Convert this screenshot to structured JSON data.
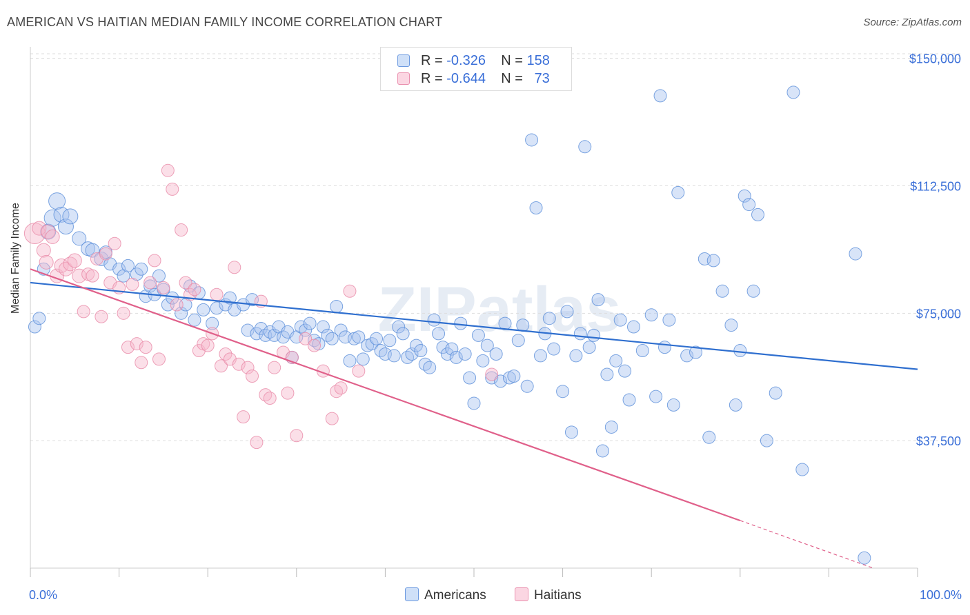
{
  "title": "AMERICAN VS HAITIAN MEDIAN FAMILY INCOME CORRELATION CHART",
  "source": "Source: ZipAtlas.com",
  "watermark": "ZIPatlas",
  "legend": {
    "rows": [
      {
        "r_label": "R =",
        "r_value": "-0.326",
        "n_label": "N =",
        "n_value": "158",
        "color": "#a9c4f0"
      },
      {
        "r_label": "R =",
        "r_value": "-0.644",
        "n_label": "N =",
        "n_value": "73",
        "color": "#f6b9cd"
      }
    ]
  },
  "bottom_legend": [
    {
      "label": "Americans",
      "color": "#a9c4f0"
    },
    {
      "label": "Haitians",
      "color": "#f6b9cd"
    }
  ],
  "chart_data": {
    "type": "scatter",
    "title": "AMERICAN VS HAITIAN MEDIAN FAMILY INCOME CORRELATION CHART",
    "xlabel": "",
    "ylabel": "Median Family Income",
    "xlim": [
      0,
      100
    ],
    "ylim": [
      0,
      155000
    ],
    "x_tick_labels": [
      "0.0%",
      "100.0%"
    ],
    "y_ticks": [
      37500,
      75000,
      112500,
      150000
    ],
    "y_tick_labels": [
      "$37,500",
      "$75,000",
      "$112,500",
      "$150,000"
    ],
    "grid": true,
    "series": [
      {
        "name": "Americans",
        "color": "#5b8fd9",
        "fill": "#a9c4f0",
        "trend": {
          "x": [
            0,
            100
          ],
          "y": [
            84000,
            58500
          ],
          "color": "#2f6fcf"
        },
        "points": [
          [
            0.5,
            71000,
            9
          ],
          [
            1,
            73500,
            9
          ],
          [
            1.5,
            88000,
            9
          ],
          [
            2,
            99000,
            11
          ],
          [
            2.5,
            103000,
            12
          ],
          [
            3,
            108000,
            12
          ],
          [
            3.5,
            104000,
            11
          ],
          [
            4,
            100500,
            11
          ],
          [
            4.5,
            103500,
            11
          ],
          [
            5.5,
            97000,
            10
          ],
          [
            6.5,
            94000,
            10
          ],
          [
            7,
            93500,
            10
          ],
          [
            8,
            91000,
            10
          ],
          [
            8.5,
            93000,
            9
          ],
          [
            9,
            89500,
            9
          ],
          [
            10,
            88000,
            9
          ],
          [
            10.5,
            86000,
            9
          ],
          [
            11,
            89000,
            9
          ],
          [
            12,
            86500,
            9
          ],
          [
            12.5,
            88000,
            9
          ],
          [
            13,
            80000,
            9
          ],
          [
            13.5,
            83000,
            9
          ],
          [
            14,
            80500,
            9
          ],
          [
            14.5,
            86000,
            9
          ],
          [
            15,
            82000,
            9
          ],
          [
            15.5,
            77500,
            9
          ],
          [
            16,
            79500,
            9
          ],
          [
            17,
            75000,
            9
          ],
          [
            17.5,
            77500,
            9
          ],
          [
            18,
            83000,
            9
          ],
          [
            18.5,
            73000,
            9
          ],
          [
            19,
            81000,
            9
          ],
          [
            19.5,
            76000,
            9
          ],
          [
            20.5,
            72000,
            9
          ],
          [
            21,
            76500,
            9
          ],
          [
            22,
            77500,
            9
          ],
          [
            22.5,
            79500,
            9
          ],
          [
            23,
            76000,
            9
          ],
          [
            24,
            77500,
            9
          ],
          [
            24.5,
            70000,
            9
          ],
          [
            25,
            79000,
            9
          ],
          [
            25.5,
            69000,
            9
          ],
          [
            26,
            70500,
            9
          ],
          [
            26.5,
            68500,
            9
          ],
          [
            27,
            69500,
            9
          ],
          [
            27.5,
            68500,
            9
          ],
          [
            28,
            71000,
            9
          ],
          [
            28.5,
            68000,
            9
          ],
          [
            29,
            69500,
            9
          ],
          [
            29.5,
            62000,
            9
          ],
          [
            30,
            68000,
            9
          ],
          [
            30.5,
            71000,
            9
          ],
          [
            31,
            70000,
            9
          ],
          [
            31.5,
            72000,
            9
          ],
          [
            32,
            67000,
            9
          ],
          [
            32.5,
            66000,
            9
          ],
          [
            33,
            71000,
            9
          ],
          [
            33.5,
            68500,
            9
          ],
          [
            34,
            67500,
            9
          ],
          [
            34.5,
            77000,
            9
          ],
          [
            35,
            70000,
            9
          ],
          [
            35.5,
            68000,
            9
          ],
          [
            36,
            61000,
            9
          ],
          [
            36.5,
            67500,
            9
          ],
          [
            37,
            68000,
            9
          ],
          [
            37.5,
            61500,
            9
          ],
          [
            38,
            65500,
            9
          ],
          [
            38.5,
            66000,
            9
          ],
          [
            39,
            67500,
            9
          ],
          [
            39.5,
            64000,
            9
          ],
          [
            40,
            63000,
            9
          ],
          [
            40.5,
            67000,
            9
          ],
          [
            41,
            62500,
            9
          ],
          [
            41.5,
            71000,
            9
          ],
          [
            42,
            69000,
            9
          ],
          [
            42.5,
            62000,
            9
          ],
          [
            43,
            63000,
            9
          ],
          [
            43.5,
            65500,
            9
          ],
          [
            44,
            64000,
            9
          ],
          [
            44.5,
            60000,
            9
          ],
          [
            45,
            59000,
            9
          ],
          [
            45.5,
            73000,
            9
          ],
          [
            46,
            69000,
            9
          ],
          [
            46.5,
            65000,
            9
          ],
          [
            47,
            63000,
            9
          ],
          [
            47.5,
            64500,
            9
          ],
          [
            48,
            62000,
            9
          ],
          [
            48.5,
            72000,
            9
          ],
          [
            49,
            63000,
            9
          ],
          [
            49.5,
            56000,
            9
          ],
          [
            50,
            48500,
            9
          ],
          [
            50.5,
            68500,
            9
          ],
          [
            51,
            61000,
            9
          ],
          [
            51.5,
            65500,
            9
          ],
          [
            52,
            56000,
            9
          ],
          [
            52.5,
            63000,
            9
          ],
          [
            53,
            55000,
            9
          ],
          [
            53.5,
            72000,
            9
          ],
          [
            54,
            56000,
            9
          ],
          [
            54.5,
            56500,
            9
          ],
          [
            55,
            67000,
            9
          ],
          [
            55.5,
            71500,
            9
          ],
          [
            56,
            53500,
            9
          ],
          [
            56.5,
            126000,
            9
          ],
          [
            57,
            106000,
            9
          ],
          [
            57.5,
            62500,
            9
          ],
          [
            58,
            69000,
            9
          ],
          [
            58.5,
            73500,
            9
          ],
          [
            59,
            64500,
            9
          ],
          [
            60,
            52000,
            9
          ],
          [
            60.5,
            75500,
            9
          ],
          [
            61,
            40000,
            9
          ],
          [
            61.5,
            62500,
            9
          ],
          [
            62,
            69000,
            9
          ],
          [
            62.5,
            124000,
            9
          ],
          [
            63,
            65000,
            9
          ],
          [
            63.5,
            68500,
            9
          ],
          [
            64,
            79000,
            9
          ],
          [
            64.5,
            34500,
            9
          ],
          [
            65,
            57000,
            9
          ],
          [
            65.5,
            41500,
            9
          ],
          [
            66,
            61000,
            9
          ],
          [
            66.5,
            73000,
            9
          ],
          [
            67,
            58000,
            9
          ],
          [
            67.5,
            49500,
            9
          ],
          [
            68,
            71000,
            9
          ],
          [
            69,
            64000,
            9
          ],
          [
            70,
            74500,
            9
          ],
          [
            70.5,
            50500,
            9
          ],
          [
            71,
            139000,
            9
          ],
          [
            71.5,
            65000,
            9
          ],
          [
            72,
            73000,
            9
          ],
          [
            72.5,
            48000,
            9
          ],
          [
            73,
            110500,
            9
          ],
          [
            74,
            62500,
            9
          ],
          [
            75,
            63500,
            9
          ],
          [
            76,
            91000,
            9
          ],
          [
            76.5,
            38500,
            9
          ],
          [
            77,
            90500,
            9
          ],
          [
            78,
            81500,
            9
          ],
          [
            79,
            71500,
            9
          ],
          [
            79.5,
            48000,
            9
          ],
          [
            80,
            64000,
            9
          ],
          [
            80.5,
            109500,
            9
          ],
          [
            81,
            107000,
            9
          ],
          [
            81.5,
            81500,
            9
          ],
          [
            82,
            104000,
            9
          ],
          [
            83,
            37500,
            9
          ],
          [
            84,
            51500,
            9
          ],
          [
            86,
            140000,
            9
          ],
          [
            87,
            29000,
            9
          ],
          [
            93,
            92500,
            9
          ],
          [
            94,
            3000,
            9
          ]
        ]
      },
      {
        "name": "Haitians",
        "color": "#e88aa8",
        "fill": "#f6b9cd",
        "trend": {
          "x": [
            0,
            80
          ],
          "y": [
            88000,
            14000
          ],
          "color": "#e0608a",
          "dashed_to": [
            95,
            0
          ]
        },
        "points": [
          [
            0.5,
            98500,
            15
          ],
          [
            1,
            100000,
            10
          ],
          [
            1.5,
            93500,
            10
          ],
          [
            1.8,
            90000,
            10
          ],
          [
            2,
            99000,
            10
          ],
          [
            2.5,
            97500,
            10
          ],
          [
            3,
            86000,
            10
          ],
          [
            3.5,
            89000,
            10
          ],
          [
            4,
            88000,
            10
          ],
          [
            4.5,
            89500,
            10
          ],
          [
            5,
            90500,
            10
          ],
          [
            5.5,
            86000,
            10
          ],
          [
            6,
            75500,
            9
          ],
          [
            6.5,
            86500,
            9
          ],
          [
            7,
            86000,
            9
          ],
          [
            7.5,
            91000,
            9
          ],
          [
            8,
            74000,
            9
          ],
          [
            8.5,
            92500,
            9
          ],
          [
            9,
            84000,
            9
          ],
          [
            9.5,
            95500,
            9
          ],
          [
            10,
            82500,
            9
          ],
          [
            10.5,
            75000,
            9
          ],
          [
            11,
            65000,
            9
          ],
          [
            11.5,
            83500,
            9
          ],
          [
            12,
            66000,
            9
          ],
          [
            12.5,
            60500,
            9
          ],
          [
            13,
            65000,
            9
          ],
          [
            13.5,
            84000,
            9
          ],
          [
            14,
            90500,
            9
          ],
          [
            14.5,
            61500,
            9
          ],
          [
            15,
            82500,
            9
          ],
          [
            15.5,
            117000,
            9
          ],
          [
            16,
            111500,
            9
          ],
          [
            16.5,
            77500,
            9
          ],
          [
            17,
            99500,
            9
          ],
          [
            17.5,
            84000,
            9
          ],
          [
            18,
            80500,
            9
          ],
          [
            18.5,
            82000,
            9
          ],
          [
            19,
            64000,
            9
          ],
          [
            19.5,
            66000,
            9
          ],
          [
            20,
            65500,
            9
          ],
          [
            20.5,
            69000,
            9
          ],
          [
            21,
            80500,
            9
          ],
          [
            21.5,
            59500,
            9
          ],
          [
            22,
            63000,
            9
          ],
          [
            22.5,
            61500,
            9
          ],
          [
            23,
            88500,
            9
          ],
          [
            23.5,
            60000,
            9
          ],
          [
            24,
            44500,
            9
          ],
          [
            24.5,
            59000,
            9
          ],
          [
            25,
            56500,
            9
          ],
          [
            25.5,
            37000,
            9
          ],
          [
            26,
            78500,
            9
          ],
          [
            26.5,
            51000,
            9
          ],
          [
            27,
            50000,
            9
          ],
          [
            27.5,
            59000,
            9
          ],
          [
            28.5,
            63500,
            9
          ],
          [
            29,
            51500,
            9
          ],
          [
            29.5,
            62000,
            9
          ],
          [
            30,
            39000,
            9
          ],
          [
            31,
            67500,
            9
          ],
          [
            32,
            65500,
            9
          ],
          [
            33,
            58000,
            9
          ],
          [
            34,
            44000,
            9
          ],
          [
            34.5,
            52000,
            9
          ],
          [
            35,
            53000,
            9
          ],
          [
            36,
            81500,
            9
          ],
          [
            37,
            58000,
            9
          ],
          [
            52,
            57000,
            9
          ]
        ]
      }
    ]
  }
}
